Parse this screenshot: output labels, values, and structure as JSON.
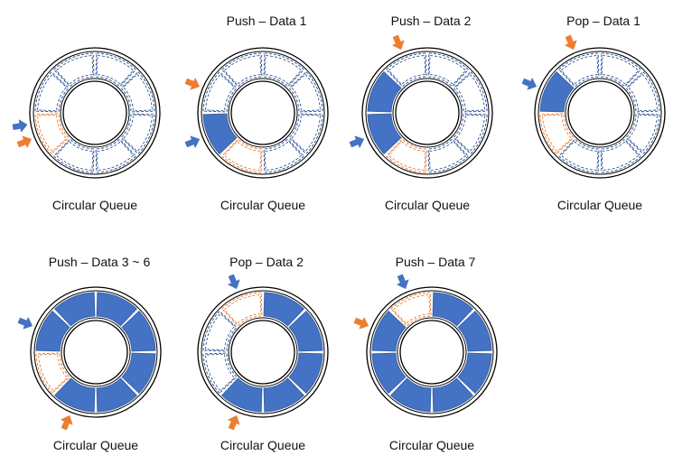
{
  "colors": {
    "filled": "#4472C4",
    "filled_stroke": "#3c64ab",
    "empty_dash_blue": "#2f5597",
    "empty_dash_orange": "#ED7D31",
    "arrow_front": "#4472C4",
    "arrow_rear": "#ED7D31",
    "ring": "#000000"
  },
  "legend": {
    "front_pointer_arrow": "blue-arrow-icon",
    "rear_pointer_arrow": "orange-arrow-icon"
  },
  "panels": [
    {
      "title": "",
      "caption": "Circular Queue",
      "filled": [
        false,
        false,
        false,
        false,
        false,
        false,
        false,
        false
      ],
      "orange_slot": 5,
      "rear_arrow": 5,
      "front_arrow": 5
    },
    {
      "title": "Push – Data 1",
      "caption": "Circular Queue",
      "filled": [
        false,
        false,
        false,
        false,
        false,
        true,
        false,
        false
      ],
      "orange_slot": 4,
      "rear_arrow": 6,
      "front_arrow": 5
    },
    {
      "title": "Push – Data 2",
      "caption": "Circular Queue",
      "filled": [
        false,
        false,
        false,
        false,
        false,
        true,
        true,
        false
      ],
      "orange_slot": 4,
      "rear_arrow": 7,
      "front_arrow": 5
    },
    {
      "title": "Pop – Data 1",
      "caption": "Circular Queue",
      "filled": [
        false,
        false,
        false,
        false,
        false,
        false,
        true,
        false
      ],
      "orange_slot": 5,
      "rear_arrow": 7,
      "front_arrow": 6
    },
    {
      "title": "Push – Data 3 ~ 6",
      "caption": "Circular Queue",
      "filled": [
        true,
        true,
        true,
        true,
        true,
        false,
        true,
        true
      ],
      "orange_slot": 5,
      "rear_arrow": 4,
      "front_arrow": 6
    },
    {
      "title": "Pop – Data 2",
      "caption": "Circular Queue",
      "filled": [
        true,
        true,
        true,
        true,
        true,
        false,
        false,
        false
      ],
      "orange_slot": 7,
      "rear_arrow": 4,
      "front_arrow": 7
    },
    {
      "title": "Push – Data 7",
      "caption": "Circular Queue",
      "filled": [
        true,
        true,
        true,
        true,
        true,
        true,
        true,
        false
      ],
      "orange_slot": 7,
      "rear_arrow": 6,
      "front_arrow": 7
    }
  ]
}
